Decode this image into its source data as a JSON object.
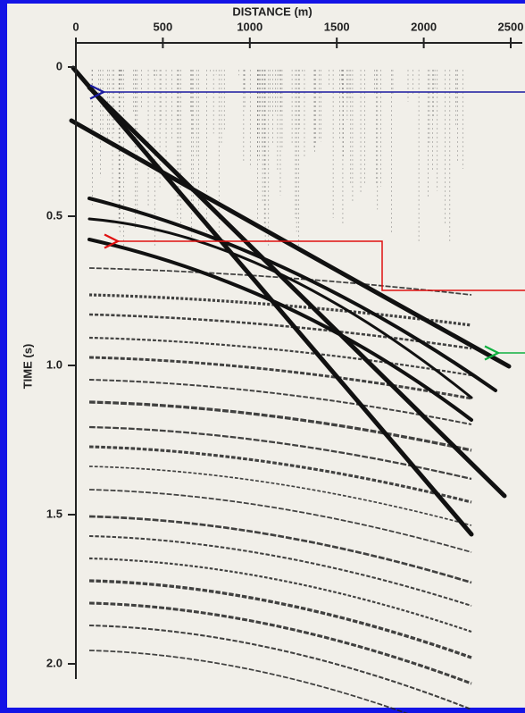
{
  "chart_data": {
    "type": "seismic",
    "x_label": "DISTANCE (m)",
    "y_label": "TIME (s)",
    "xlim": [
      0,
      2500
    ],
    "xticks": [
      0,
      500,
      1000,
      1500,
      2000,
      2500
    ],
    "ylim": [
      0,
      2.0
    ],
    "yticks": [
      0,
      0.5,
      {
        "value": 1.0,
        "label": "1.0"
      },
      1.5,
      {
        "value": 2.0,
        "label": "2.0"
      }
    ]
  }
}
